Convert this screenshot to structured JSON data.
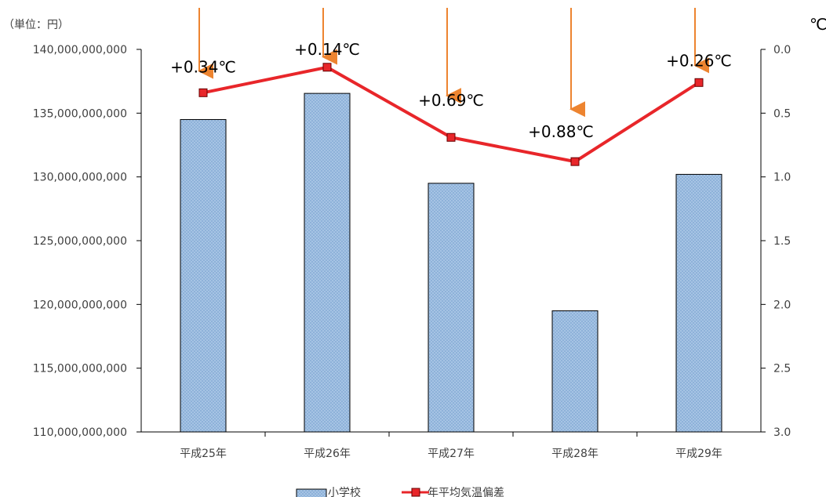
{
  "chart_data": {
    "type": "bar+line",
    "categories": [
      "平成25年",
      "平成26年",
      "平成27年",
      "平成28年",
      "平成29年"
    ],
    "series": [
      {
        "name": "小学校",
        "kind": "bar",
        "axis": "left",
        "values": [
          134500000000,
          136550000000,
          129500000000,
          119500000000,
          130200000000
        ]
      },
      {
        "name": "年平均気温偏差",
        "kind": "line",
        "axis": "right",
        "values": [
          0.34,
          0.14,
          0.69,
          0.88,
          0.26
        ],
        "labels": [
          "+0.34℃",
          "+0.14℃",
          "+0.69℃",
          "+0.88℃",
          "+0.26℃"
        ]
      }
    ],
    "y_left": {
      "unit_label": "（単位：円）",
      "ylim": [
        110000000000,
        140000000000
      ],
      "ticks": [
        "140,000,000,000",
        "135,000,000,000",
        "130,000,000,000",
        "125,000,000,000",
        "120,000,000,000",
        "115,000,000,000",
        "110,000,000,000"
      ]
    },
    "y_right": {
      "unit_label": "℃",
      "ylim": [
        0.0,
        3.0
      ],
      "inverted": true,
      "ticks": [
        "0.0",
        "0.5",
        "1.0",
        "1.5",
        "2.0",
        "2.5",
        "3.0"
      ]
    },
    "legend_position": "bottom",
    "grid": false,
    "colors": {
      "bar_fill": "#a9c6e6",
      "bar_border": "#000000",
      "line": "#e8262a",
      "marker_fill": "#e8262a",
      "arrow": "#ed8430",
      "axis": "#000000"
    }
  }
}
